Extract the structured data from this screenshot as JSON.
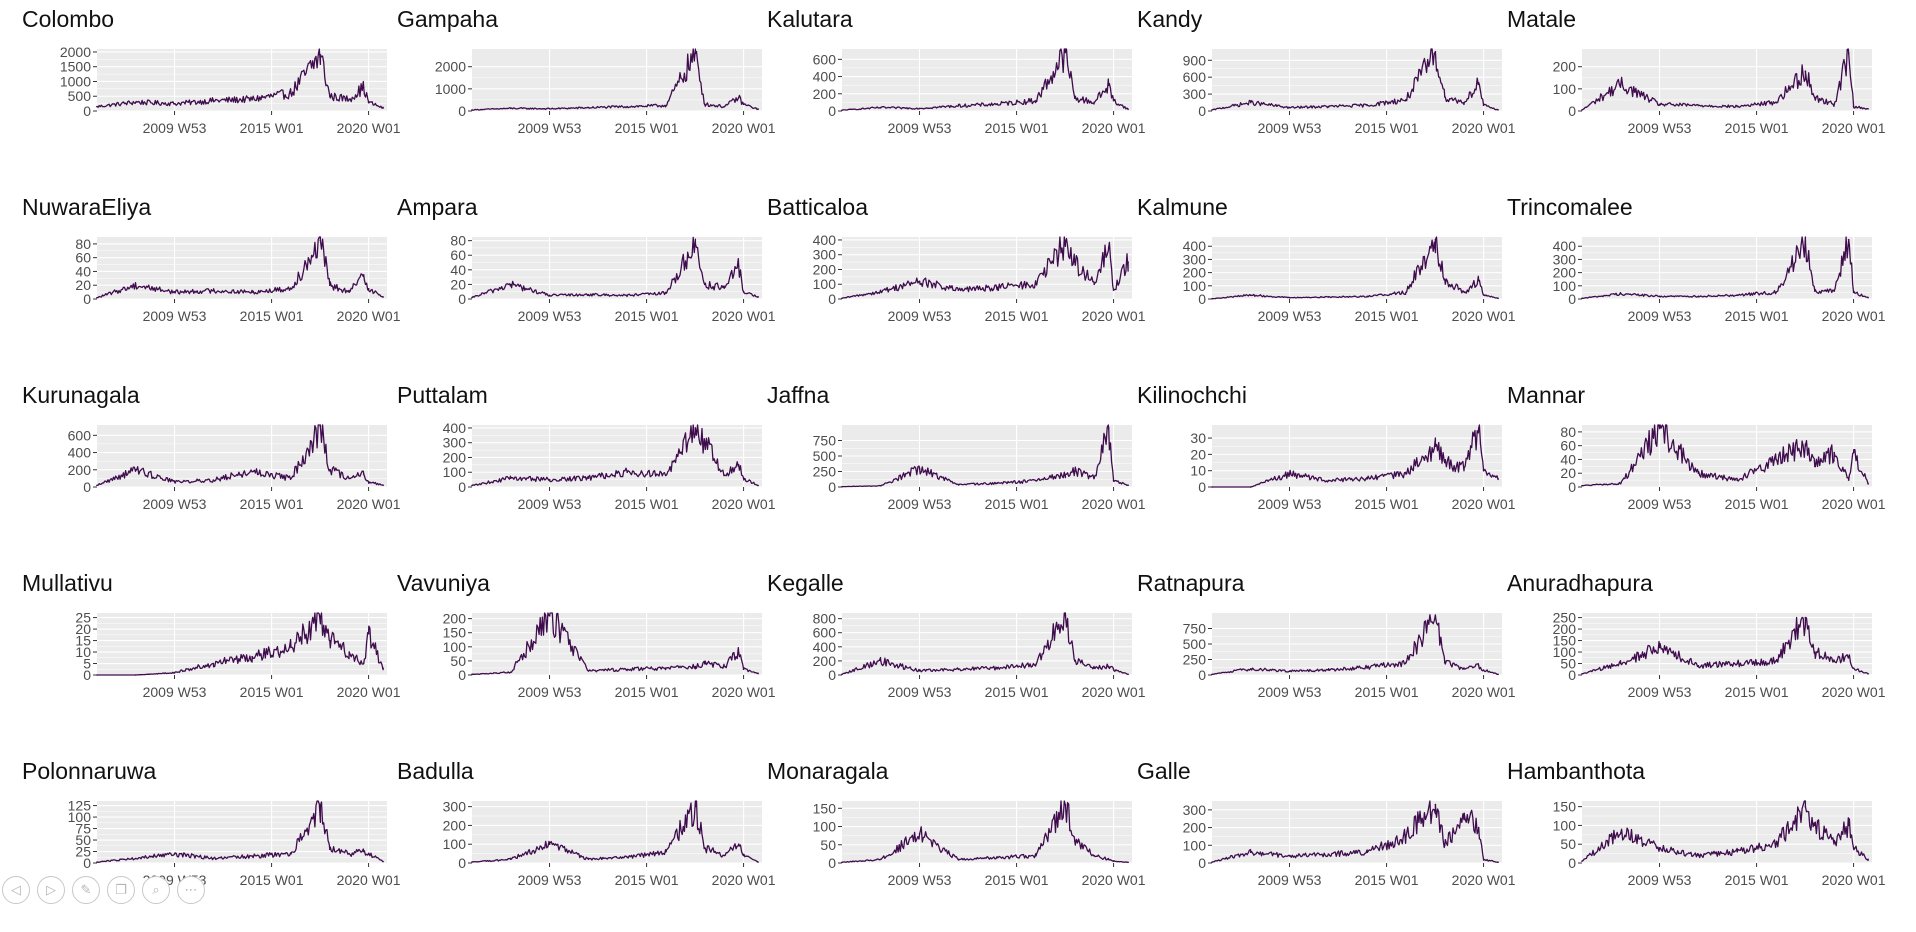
{
  "colors": {
    "line": "#3f0d4d",
    "panel_bg": "#ebebeb",
    "grid": "#ffffff",
    "text": "#111111",
    "tick_text": "#4d4d4d"
  },
  "chart_data": [
    {
      "type": "line",
      "title": "Colombo",
      "x": [
        "2006 W01",
        "2008 W01",
        "2010 W01",
        "2012 W01",
        "2014 W01",
        "2016 W01",
        "2017 W28",
        "2018 W01",
        "2019 W01",
        "2019 W40",
        "2020 W01",
        "2020 W40"
      ],
      "y": [
        150,
        300,
        250,
        350,
        400,
        600,
        1900,
        500,
        400,
        800,
        300,
        100
      ],
      "ylim": [
        0,
        2100
      ],
      "yticks": [
        0,
        500,
        1000,
        1500,
        2000
      ],
      "xticks": [
        "2009 W53",
        "2015 W01",
        "2020 W01"
      ]
    },
    {
      "type": "line",
      "title": "Gampaha",
      "x": [
        "2006 W01",
        "2008 W01",
        "2010 W01",
        "2012 W01",
        "2014 W01",
        "2016 W01",
        "2017 W28",
        "2018 W01",
        "2019 W01",
        "2019 W40",
        "2020 W01",
        "2020 W40"
      ],
      "y": [
        50,
        120,
        100,
        150,
        200,
        250,
        2600,
        300,
        200,
        600,
        300,
        80
      ],
      "ylim": [
        0,
        2800
      ],
      "yticks": [
        0,
        1000,
        2000
      ],
      "xticks": [
        "2009 W53",
        "2015 W01",
        "2020 W01"
      ]
    },
    {
      "type": "line",
      "title": "Kalutara",
      "x": [
        "2006 W01",
        "2008 W01",
        "2010 W01",
        "2012 W01",
        "2014 W01",
        "2016 W01",
        "2017 W28",
        "2018 W01",
        "2019 W01",
        "2019 W40",
        "2020 W01",
        "2020 W40"
      ],
      "y": [
        10,
        40,
        30,
        60,
        80,
        120,
        680,
        150,
        100,
        300,
        120,
        20
      ],
      "ylim": [
        0,
        720
      ],
      "yticks": [
        0,
        200,
        400,
        600
      ],
      "xticks": [
        "2009 W53",
        "2015 W01",
        "2020 W01"
      ]
    },
    {
      "type": "line",
      "title": "Kandy",
      "x": [
        "2006 W01",
        "2008 W01",
        "2010 W01",
        "2012 W01",
        "2014 W01",
        "2016 W01",
        "2017 W28",
        "2018 W01",
        "2019 W01",
        "2019 W40",
        "2020 W01",
        "2020 W40"
      ],
      "y": [
        20,
        150,
        60,
        80,
        100,
        200,
        1050,
        250,
        150,
        500,
        100,
        20
      ],
      "ylim": [
        0,
        1100
      ],
      "yticks": [
        0,
        300,
        600,
        900
      ],
      "xticks": [
        "2009 W53",
        "2015 W01",
        "2020 W01"
      ]
    },
    {
      "type": "line",
      "title": "Matale",
      "x": [
        "2006 W01",
        "2008 W01",
        "2010 W01",
        "2012 W01",
        "2014 W01",
        "2016 W01",
        "2017 W28",
        "2018 W01",
        "2019 W01",
        "2019 W40",
        "2020 W01",
        "2020 W40"
      ],
      "y": [
        5,
        120,
        30,
        25,
        20,
        40,
        180,
        60,
        30,
        260,
        20,
        10
      ],
      "ylim": [
        0,
        280
      ],
      "yticks": [
        0,
        100,
        200
      ],
      "xticks": [
        "2009 W53",
        "2015 W01",
        "2020 W01"
      ]
    },
    {
      "type": "line",
      "title": "NuwaraEliya",
      "x": [
        "2006 W01",
        "2008 W01",
        "2010 W01",
        "2012 W01",
        "2014 W01",
        "2016 W01",
        "2017 W28",
        "2018 W01",
        "2019 W01",
        "2019 W40",
        "2020 W01",
        "2020 W40"
      ],
      "y": [
        2,
        20,
        10,
        12,
        10,
        15,
        85,
        20,
        10,
        35,
        15,
        3
      ],
      "ylim": [
        0,
        90
      ],
      "yticks": [
        0,
        20,
        40,
        60,
        80
      ],
      "xticks": [
        "2009 W53",
        "2015 W01",
        "2020 W01"
      ]
    },
    {
      "type": "line",
      "title": "Ampara",
      "x": [
        "2006 W01",
        "2008 W01",
        "2010 W01",
        "2012 W01",
        "2014 W01",
        "2016 W01",
        "2017 W28",
        "2018 W01",
        "2019 W01",
        "2019 W40",
        "2020 W01",
        "2020 W40"
      ],
      "y": [
        2,
        20,
        5,
        6,
        5,
        8,
        75,
        20,
        15,
        45,
        10,
        3
      ],
      "ylim": [
        0,
        85
      ],
      "yticks": [
        0,
        20,
        40,
        60,
        80
      ],
      "xticks": [
        "2009 W53",
        "2015 W01",
        "2020 W01"
      ]
    },
    {
      "type": "line",
      "title": "Batticaloa",
      "x": [
        "2006 W01",
        "2008 W01",
        "2010 W01",
        "2012 W01",
        "2014 W01",
        "2016 W01",
        "2017 W28",
        "2018 W01",
        "2019 W01",
        "2019 W40",
        "2020 W01",
        "2020 W40"
      ],
      "y": [
        5,
        50,
        120,
        60,
        80,
        100,
        380,
        250,
        100,
        350,
        60,
        250
      ],
      "ylim": [
        0,
        420
      ],
      "yticks": [
        0,
        100,
        200,
        300,
        400
      ],
      "xticks": [
        "2009 W53",
        "2015 W01",
        "2020 W01"
      ]
    },
    {
      "type": "line",
      "title": "Kalmune",
      "x": [
        "2006 W01",
        "2008 W01",
        "2010 W01",
        "2012 W01",
        "2014 W01",
        "2016 W01",
        "2017 W28",
        "2018 W01",
        "2019 W01",
        "2019 W40",
        "2020 W01",
        "2020 W40"
      ],
      "y": [
        2,
        30,
        10,
        15,
        20,
        50,
        450,
        150,
        50,
        140,
        30,
        5
      ],
      "ylim": [
        0,
        470
      ],
      "yticks": [
        0,
        100,
        200,
        300,
        400
      ],
      "xticks": [
        "2009 W53",
        "2015 W01",
        "2020 W01"
      ]
    },
    {
      "type": "line",
      "title": "Trincomalee",
      "x": [
        "2006 W01",
        "2008 W01",
        "2010 W01",
        "2012 W01",
        "2014 W01",
        "2016 W01",
        "2017 W28",
        "2018 W01",
        "2019 W01",
        "2019 W40",
        "2020 W01",
        "2020 W40"
      ],
      "y": [
        5,
        40,
        20,
        20,
        30,
        50,
        440,
        60,
        60,
        450,
        50,
        10
      ],
      "ylim": [
        0,
        470
      ],
      "yticks": [
        0,
        100,
        200,
        300,
        400
      ],
      "xticks": [
        "2009 W53",
        "2015 W01",
        "2020 W01"
      ]
    },
    {
      "type": "line",
      "title": "Kurunagala",
      "x": [
        "2006 W01",
        "2008 W01",
        "2010 W01",
        "2012 W01",
        "2014 W01",
        "2016 W01",
        "2017 W28",
        "2018 W01",
        "2019 W01",
        "2019 W40",
        "2020 W01",
        "2020 W40"
      ],
      "y": [
        20,
        200,
        60,
        80,
        180,
        100,
        700,
        200,
        100,
        150,
        60,
        20
      ],
      "ylim": [
        0,
        720
      ],
      "yticks": [
        0,
        200,
        400,
        600
      ],
      "xticks": [
        "2009 W53",
        "2015 W01",
        "2020 W01"
      ]
    },
    {
      "type": "line",
      "title": "Puttalam",
      "x": [
        "2006 W01",
        "2008 W01",
        "2010 W01",
        "2012 W01",
        "2014 W01",
        "2016 W01",
        "2017 W28",
        "2018 W01",
        "2019 W01",
        "2019 W40",
        "2020 W01",
        "2020 W40"
      ],
      "y": [
        10,
        60,
        50,
        60,
        100,
        80,
        400,
        300,
        80,
        150,
        60,
        10
      ],
      "ylim": [
        0,
        420
      ],
      "yticks": [
        0,
        100,
        200,
        300,
        400
      ],
      "xticks": [
        "2009 W53",
        "2015 W01",
        "2020 W01"
      ]
    },
    {
      "type": "line",
      "title": "Jaffna",
      "x": [
        "2006 W01",
        "2008 W01",
        "2010 W01",
        "2012 W01",
        "2014 W01",
        "2016 W01",
        "2017 W28",
        "2018 W01",
        "2019 W01",
        "2019 W40",
        "2020 W01",
        "2020 W40"
      ],
      "y": [
        5,
        20,
        300,
        40,
        60,
        100,
        200,
        250,
        150,
        950,
        100,
        30
      ],
      "ylim": [
        0,
        1000
      ],
      "yticks": [
        0,
        250,
        500,
        750
      ],
      "xticks": [
        "2009 W53",
        "2015 W01",
        "2020 W01"
      ]
    },
    {
      "type": "line",
      "title": "Kilinochchi",
      "x": [
        "2006 W01",
        "2008 W01",
        "2010 W01",
        "2012 W01",
        "2014 W01",
        "2016 W01",
        "2017 W28",
        "2018 W01",
        "2019 W01",
        "2019 W40",
        "2020 W01",
        "2020 W40"
      ],
      "y": [
        0,
        0,
        8,
        4,
        5,
        8,
        25,
        15,
        12,
        36,
        10,
        5
      ],
      "ylim": [
        0,
        38
      ],
      "yticks": [
        0,
        10,
        20,
        30
      ],
      "xticks": [
        "2009 W53",
        "2015 W01",
        "2020 W01"
      ]
    },
    {
      "type": "line",
      "title": "Mannar",
      "x": [
        "2006 W01",
        "2008 W01",
        "2010 W01",
        "2012 W01",
        "2014 W01",
        "2016 W01",
        "2017 W28",
        "2018 W01",
        "2019 W01",
        "2019 W40",
        "2020 W01",
        "2020 W40"
      ],
      "y": [
        2,
        5,
        85,
        20,
        10,
        40,
        60,
        30,
        50,
        10,
        50,
        5
      ],
      "ylim": [
        0,
        90
      ],
      "yticks": [
        0,
        20,
        40,
        60,
        80
      ],
      "xticks": [
        "2009 W53",
        "2015 W01",
        "2020 W01"
      ]
    },
    {
      "type": "line",
      "title": "Mullativu",
      "x": [
        "2006 W01",
        "2008 W01",
        "2010 W01",
        "2012 W01",
        "2014 W01",
        "2016 W01",
        "2017 W28",
        "2018 W01",
        "2019 W01",
        "2019 W40",
        "2020 W01",
        "2020 W40"
      ],
      "y": [
        0,
        0,
        1,
        5,
        8,
        12,
        25,
        15,
        10,
        5,
        18,
        3
      ],
      "ylim": [
        0,
        27
      ],
      "yticks": [
        0,
        5,
        10,
        15,
        20,
        25
      ],
      "xticks": [
        "2009 W53",
        "2015 W01",
        "2020 W01"
      ]
    },
    {
      "type": "line",
      "title": "Vavuniya",
      "x": [
        "2006 W01",
        "2008 W01",
        "2010 W01",
        "2012 W01",
        "2014 W01",
        "2016 W01",
        "2017 W28",
        "2018 W01",
        "2019 W01",
        "2019 W40",
        "2020 W01",
        "2020 W40"
      ],
      "y": [
        2,
        10,
        210,
        15,
        20,
        25,
        30,
        40,
        30,
        80,
        20,
        5
      ],
      "ylim": [
        0,
        220
      ],
      "yticks": [
        0,
        50,
        100,
        150,
        200
      ],
      "xticks": [
        "2009 W53",
        "2015 W01",
        "2020 W01"
      ]
    },
    {
      "type": "line",
      "title": "Kegalle",
      "x": [
        "2006 W01",
        "2008 W01",
        "2010 W01",
        "2012 W01",
        "2014 W01",
        "2016 W01",
        "2017 W28",
        "2018 W01",
        "2019 W01",
        "2019 W40",
        "2020 W01",
        "2020 W40"
      ],
      "y": [
        10,
        200,
        60,
        80,
        100,
        150,
        850,
        200,
        100,
        120,
        80,
        10
      ],
      "ylim": [
        0,
        880
      ],
      "yticks": [
        0,
        200,
        400,
        600,
        800
      ],
      "xticks": [
        "2009 W53",
        "2015 W01",
        "2020 W01"
      ]
    },
    {
      "type": "line",
      "title": "Ratnapura",
      "x": [
        "2006 W01",
        "2008 W01",
        "2010 W01",
        "2012 W01",
        "2014 W01",
        "2016 W01",
        "2017 W28",
        "2018 W01",
        "2019 W01",
        "2019 W40",
        "2020 W01",
        "2020 W40"
      ],
      "y": [
        10,
        100,
        60,
        80,
        120,
        200,
        950,
        200,
        100,
        150,
        80,
        10
      ],
      "ylim": [
        0,
        1000
      ],
      "yticks": [
        0,
        250,
        500,
        750
      ],
      "xticks": [
        "2009 W53",
        "2015 W01",
        "2020 W01"
      ]
    },
    {
      "type": "line",
      "title": "Anuradhapura",
      "x": [
        "2006 W01",
        "2008 W01",
        "2010 W01",
        "2012 W01",
        "2014 W01",
        "2016 W01",
        "2017 W28",
        "2018 W01",
        "2019 W01",
        "2019 W40",
        "2020 W01",
        "2020 W40"
      ],
      "y": [
        5,
        50,
        120,
        40,
        50,
        60,
        250,
        100,
        60,
        80,
        30,
        5
      ],
      "ylim": [
        0,
        270
      ],
      "yticks": [
        0,
        50,
        100,
        150,
        200,
        250
      ],
      "xticks": [
        "2009 W53",
        "2015 W01",
        "2020 W01"
      ]
    },
    {
      "type": "line",
      "title": "Polonnaruwa",
      "x": [
        "2006 W01",
        "2008 W01",
        "2010 W01",
        "2012 W01",
        "2014 W01",
        "2016 W01",
        "2017 W28",
        "2018 W01",
        "2019 W01",
        "2019 W40",
        "2020 W01",
        "2020 W40"
      ],
      "y": [
        2,
        10,
        20,
        10,
        15,
        20,
        125,
        30,
        20,
        25,
        20,
        3
      ],
      "ylim": [
        0,
        135
      ],
      "yticks": [
        0,
        25,
        50,
        75,
        100,
        125
      ],
      "xticks": [
        "2009 W53",
        "2015 W01",
        "2020 W01"
      ]
    },
    {
      "type": "line",
      "title": "Badulla",
      "x": [
        "2006 W01",
        "2008 W01",
        "2010 W01",
        "2012 W01",
        "2014 W01",
        "2016 W01",
        "2017 W28",
        "2018 W01",
        "2019 W01",
        "2019 W40",
        "2020 W01",
        "2020 W40"
      ],
      "y": [
        5,
        20,
        100,
        20,
        30,
        60,
        300,
        80,
        40,
        100,
        40,
        5
      ],
      "ylim": [
        0,
        330
      ],
      "yticks": [
        0,
        100,
        200,
        300
      ],
      "xticks": [
        "2009 W53",
        "2015 W01",
        "2020 W01"
      ]
    },
    {
      "type": "line",
      "title": "Monaragala",
      "x": [
        "2006 W01",
        "2008 W01",
        "2010 W01",
        "2012 W01",
        "2014 W01",
        "2016 W01",
        "2017 W28",
        "2018 W01",
        "2019 W01",
        "2019 W40",
        "2020 W01",
        "2020 W40"
      ],
      "y": [
        2,
        10,
        80,
        10,
        15,
        20,
        160,
        60,
        20,
        10,
        5,
        2
      ],
      "ylim": [
        0,
        170
      ],
      "yticks": [
        0,
        50,
        100,
        150
      ],
      "xticks": [
        "2009 W53",
        "2015 W01",
        "2020 W01"
      ]
    },
    {
      "type": "line",
      "title": "Galle",
      "x": [
        "2006 W01",
        "2008 W01",
        "2010 W01",
        "2012 W01",
        "2014 W01",
        "2016 W01",
        "2017 W28",
        "2018 W01",
        "2019 W01",
        "2019 W40",
        "2020 W01",
        "2020 W40"
      ],
      "y": [
        5,
        60,
        40,
        50,
        60,
        150,
        330,
        100,
        280,
        200,
        20,
        5
      ],
      "ylim": [
        0,
        350
      ],
      "yticks": [
        0,
        100,
        200,
        300
      ],
      "xticks": [
        "2009 W53",
        "2015 W01",
        "2020 W01"
      ]
    },
    {
      "type": "line",
      "title": "Hambanthota",
      "x": [
        "2006 W01",
        "2008 W01",
        "2010 W01",
        "2012 W01",
        "2014 W01",
        "2016 W01",
        "2017 W28",
        "2018 W01",
        "2019 W01",
        "2019 W40",
        "2020 W01",
        "2020 W40"
      ],
      "y": [
        5,
        80,
        40,
        20,
        30,
        50,
        150,
        100,
        60,
        100,
        40,
        10
      ],
      "ylim": [
        0,
        165
      ],
      "yticks": [
        0,
        50,
        100,
        150
      ],
      "xticks": [
        "2009 W53",
        "2015 W01",
        "2020 W01"
      ]
    }
  ],
  "toolbar": {
    "buttons": [
      {
        "icon": "prev-icon",
        "glyph": "◁"
      },
      {
        "icon": "next-icon",
        "glyph": "▷"
      },
      {
        "icon": "pen-icon",
        "glyph": "✎"
      },
      {
        "icon": "copy-icon",
        "glyph": "❐"
      },
      {
        "icon": "zoom-icon",
        "glyph": "⌕"
      },
      {
        "icon": "more-icon",
        "glyph": "⋯"
      }
    ]
  }
}
